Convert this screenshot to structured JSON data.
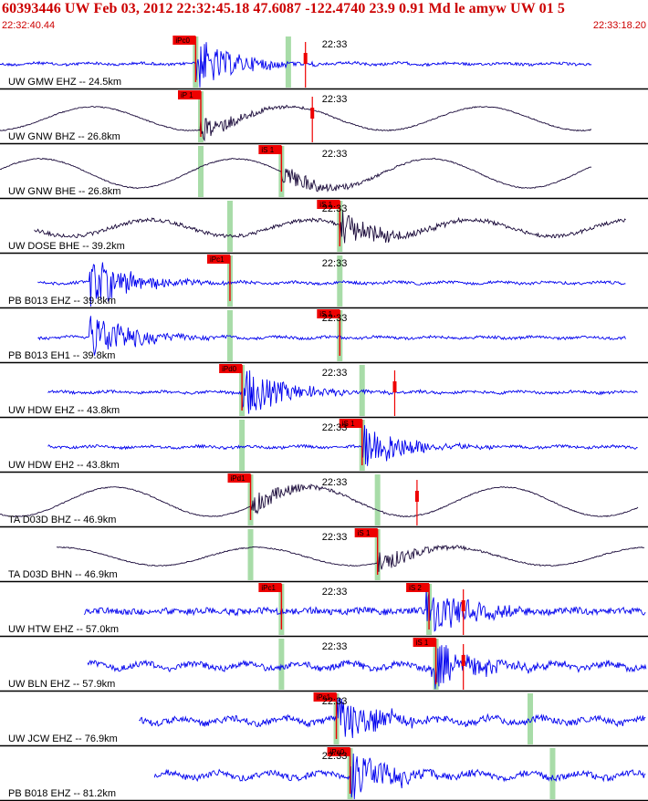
{
  "header": {
    "title": "60393446 UW Feb 03, 2012 22:32:45.18   47.6087 -122.4740 23.9 0.91 Md le amyw UW 01   5",
    "time_start": "22:32:40.44",
    "time_end": "22:33:18.20"
  },
  "colors": {
    "header_text": "#cc0000",
    "trace_vertical": "#0000ee",
    "trace_horizontal": "#1a0a3a",
    "pick_flag": "#ee0000",
    "window_band": "#a8dca8",
    "divider": "#000000"
  },
  "chart_data": {
    "type": "line",
    "title": "60393446 UW Feb 03, 2012 22:32:45.18   47.6087 -122.4740 23.9 0.91 Md le amyw UW 01   5",
    "x_unit": "time",
    "xlim": [
      "22:32:40.44",
      "22:33:18.20"
    ],
    "tick_label": "22:33",
    "grid": false,
    "legend": "none",
    "series": [
      {
        "label": "UW GMW EHZ -- 24.5km",
        "component": "vertical",
        "band_sec": [
          11.4,
          16.8
        ],
        "pick": {
          "label": "iPc0",
          "sec": 11.4
        },
        "extra_pick_sec": 17.8,
        "trace_sec": [
          0,
          34.5
        ],
        "style": "hf",
        "onset_sec": 11.4
      },
      {
        "label": "UW GNW BHZ -- 26.8km",
        "component": "horizontal",
        "band_sec": [
          11.7
        ],
        "pick": {
          "label": "iP 1",
          "sec": 11.7
        },
        "extra_pick_sec": 18.2,
        "trace_sec": [
          0,
          34.5
        ],
        "style": "lf",
        "onset_sec": 11.7
      },
      {
        "label": "UW GNW BHE -- 26.8km",
        "component": "horizontal",
        "band_sec": [
          11.7,
          16.4
        ],
        "pick": {
          "label": "iS 1",
          "sec": 16.4
        },
        "trace_sec": [
          0,
          34.5
        ],
        "style": "lf",
        "onset_sec": 16.4
      },
      {
        "label": "UW DOSE BHE -- 39.2km",
        "component": "horizontal",
        "band_sec": [
          13.4,
          19.8
        ],
        "pick": {
          "label": "iS 1",
          "sec": 19.8
        },
        "trace_sec": [
          2,
          36.5
        ],
        "style": "mf",
        "onset_sec": 19.8
      },
      {
        "label": "PB B013 EHZ -- 39.8km",
        "component": "vertical",
        "band_sec": [
          13.4,
          19.8
        ],
        "pick": {
          "label": "iPc1",
          "sec": 13.4
        },
        "trace_sec": [
          2.2,
          36.5
        ],
        "style": "hf",
        "onset_sec": 5.2
      },
      {
        "label": "PB B013 EH1 -- 39.8km",
        "component": "vertical",
        "band_sec": [
          13.4,
          19.8
        ],
        "pick": {
          "label": "iS 1",
          "sec": 19.8
        },
        "trace_sec": [
          2.2,
          36.5
        ],
        "style": "hf",
        "onset_sec": 5.2
      },
      {
        "label": "UW HDW EHZ -- 43.8km",
        "component": "vertical",
        "band_sec": [
          14.1,
          21.1
        ],
        "pick": {
          "label": "iPd0",
          "sec": 14.1
        },
        "extra_pick_sec": 23.0,
        "trace_sec": [
          2.8,
          37.2
        ],
        "style": "hf",
        "onset_sec": 14.1
      },
      {
        "label": "UW HDW EH2 -- 43.8km",
        "component": "vertical",
        "band_sec": [
          14.1,
          21.1
        ],
        "pick": {
          "label": "iS 1",
          "sec": 21.1
        },
        "trace_sec": [
          2.8,
          37.2
        ],
        "style": "hf",
        "onset_sec": 21.1
      },
      {
        "label": "TA D03D BHZ -- 46.9km",
        "component": "horizontal",
        "band_sec": [
          14.6,
          22.0
        ],
        "pick": {
          "label": "iPd1",
          "sec": 14.6
        },
        "extra_pick_sec": 24.3,
        "trace_sec": [
          0,
          37.2
        ],
        "style": "lf",
        "onset_sec": 14.6
      },
      {
        "label": "TA D03D BHN -- 46.9km",
        "component": "horizontal",
        "band_sec": [
          14.6,
          22.0
        ],
        "pick": {
          "label": "iS 1",
          "sec": 22.0
        },
        "trace_sec": [
          3.3,
          37.6
        ],
        "style": "lf",
        "onset_sec": 22.0
      },
      {
        "label": "UW HTW EHZ -- 57.0km",
        "component": "vertical",
        "band_sec": [
          16.4,
          25.0
        ],
        "pick": {
          "label": "iPc1",
          "sec": 16.4
        },
        "pick2": {
          "label": "iS 2",
          "sec": 25.0
        },
        "extra_pick_sec": 27.0,
        "trace_sec": [
          4.9,
          39.3
        ],
        "style": "hf",
        "onset_sec": 24.8
      },
      {
        "label": "UW BLN EHZ -- 57.9km",
        "component": "vertical",
        "band_sec": [
          16.4,
          25.4
        ],
        "pick": {
          "label": "iS 1",
          "sec": 25.4
        },
        "extra_pick_sec": 27.0,
        "trace_sec": [
          5.1,
          39.6
        ],
        "style": "hf",
        "onset_sec": 25.1
      },
      {
        "label": "UW JCW EHZ -- 76.9km",
        "component": "vertical",
        "band_sec": [
          19.6,
          30.9
        ],
        "pick": {
          "label": "iPc1",
          "sec": 19.6
        },
        "trace_sec": [
          8.1,
          42.6
        ],
        "style": "hf",
        "onset_sec": 19.6
      },
      {
        "label": "PB B018 EHZ -- 81.2km",
        "component": "vertical",
        "band_sec": [
          20.4,
          32.2
        ],
        "pick": {
          "label": "iPc0",
          "sec": 20.4
        },
        "trace_sec": [
          9.0,
          43.4
        ],
        "style": "hf",
        "onset_sec": 20.4
      }
    ]
  }
}
